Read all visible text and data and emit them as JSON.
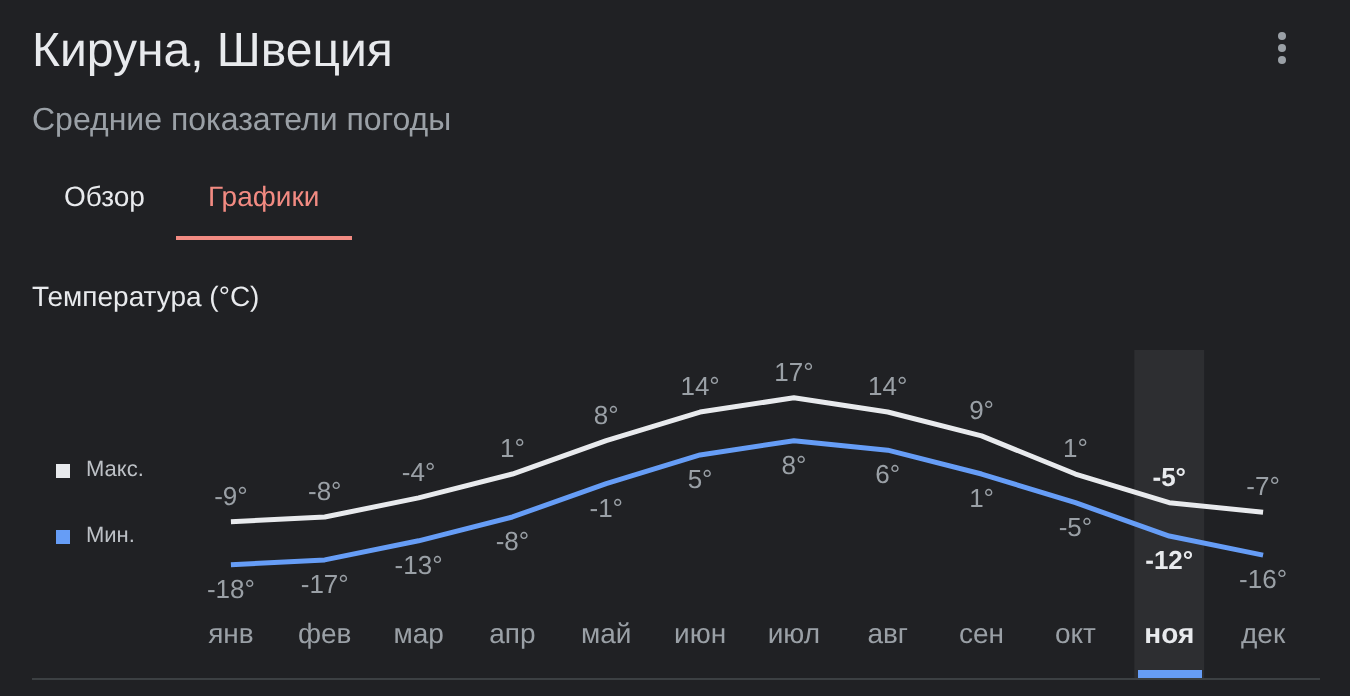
{
  "chart_data": {
    "type": "line",
    "title": "Кируна, Швеция",
    "subtitle": "Средние показатели погоды",
    "ylabel": "Температура (°C)",
    "annotations": [
      "Обзор",
      "Графики"
    ],
    "categories": [
      "янв",
      "фев",
      "мар",
      "апр",
      "май",
      "июн",
      "июл",
      "авг",
      "сен",
      "окт",
      "ноя",
      "дек"
    ],
    "series": [
      {
        "name": "Макс.",
        "color": "#e8eaed",
        "values": [
          -9,
          -8,
          -4,
          1,
          8,
          14,
          17,
          14,
          9,
          1,
          -5,
          -7
        ],
        "value_labels": [
          "-9°",
          "-8°",
          "-4°",
          "1°",
          "8°",
          "14°",
          "17°",
          "14°",
          "9°",
          "1°",
          "-5°",
          "-7°"
        ]
      },
      {
        "name": "Мин.",
        "color": "#669df6",
        "values": [
          -18,
          -17,
          -13,
          -8,
          -1,
          5,
          8,
          6,
          1,
          -5,
          -12,
          -16
        ],
        "value_labels": [
          "-18°",
          "-17°",
          "-13°",
          "-8°",
          "-1°",
          "5°",
          "8°",
          "6°",
          "1°",
          "-5°",
          "-12°",
          "-16°"
        ]
      }
    ],
    "bands": [
      {
        "axis": "x",
        "from": "ноя",
        "to": "ноя",
        "color": "#2d2e31"
      }
    ],
    "legend": "left",
    "marker": "none"
  }
}
